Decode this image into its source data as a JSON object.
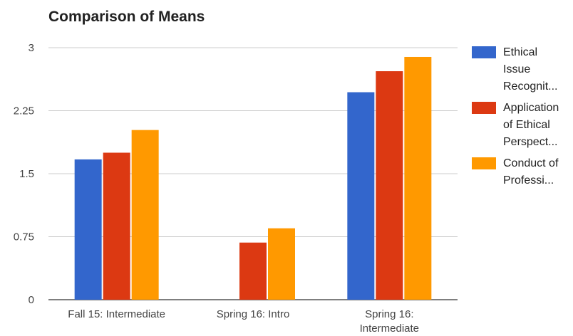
{
  "chart_data": {
    "type": "bar",
    "title": "Comparison of Means",
    "xlabel": "",
    "ylabel": "",
    "ylim": [
      0,
      3
    ],
    "yticks": [
      "0",
      "0.75",
      "1.5",
      "2.25",
      "3"
    ],
    "ytick_values": [
      0,
      0.75,
      1.5,
      2.25,
      3
    ],
    "categories": [
      "Fall 15: Intermediate",
      "Spring 16: Intro",
      "Spring 16: Intermediate"
    ],
    "category_lines": [
      [
        "Fall 15: Intermediate"
      ],
      [
        "Spring 16: Intro"
      ],
      [
        "Spring 16:",
        "Intermediate"
      ]
    ],
    "series": [
      {
        "name": "Ethical Issue Recognit...",
        "name_lines": [
          "Ethical",
          "Issue",
          "Recognit..."
        ],
        "color": "#3366cc",
        "values": [
          1.67,
          null,
          2.47
        ]
      },
      {
        "name": "Application of Ethical Perspect...",
        "name_lines": [
          "Application",
          "of Ethical",
          "Perspect..."
        ],
        "color": "#dc3912",
        "values": [
          1.75,
          0.68,
          2.72
        ]
      },
      {
        "name": "Conduct of Professi...",
        "name_lines": [
          "Conduct of",
          "Professi..."
        ],
        "color": "#ff9900",
        "values": [
          2.02,
          0.85,
          2.89
        ]
      }
    ],
    "grid": true,
    "legend_position": "right"
  }
}
